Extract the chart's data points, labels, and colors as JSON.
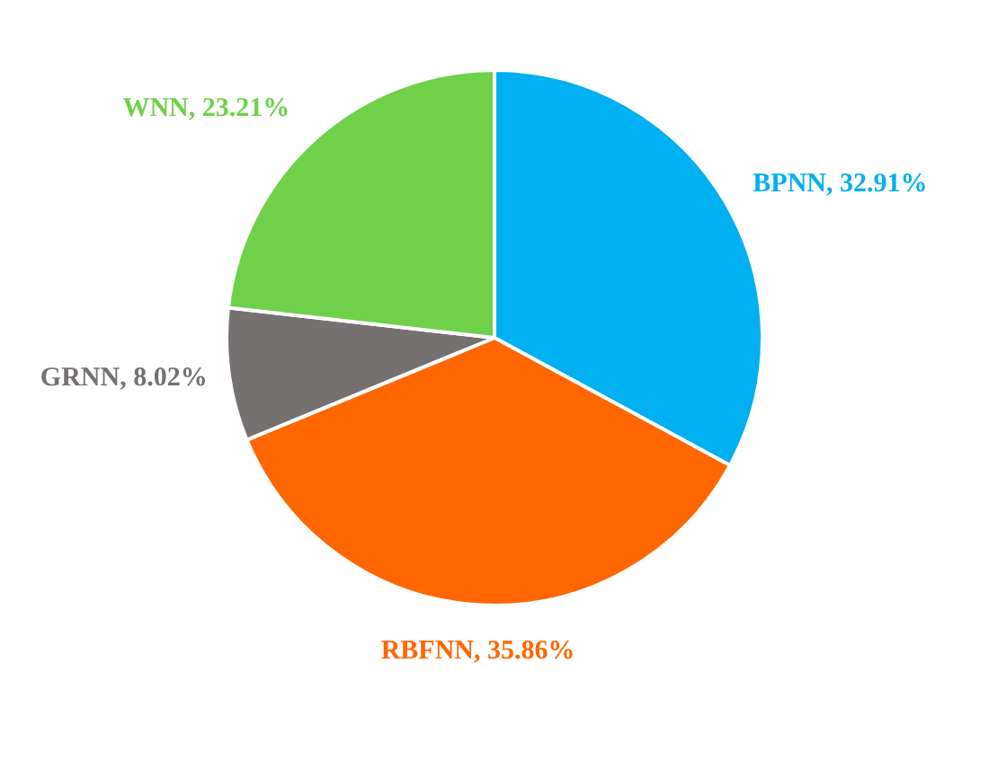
{
  "chart_data": {
    "type": "pie",
    "categories": [
      "BPNN",
      "RBFNN",
      "GRNN",
      "WNN"
    ],
    "values": [
      32.91,
      35.86,
      8.02,
      23.21
    ],
    "value_labels": [
      "32.91%",
      "35.86%",
      "8.02%",
      "23.21%"
    ],
    "colors": [
      "#00b0f0",
      "#ff6600",
      "#767171",
      "#6fd04a"
    ],
    "legend": false
  }
}
